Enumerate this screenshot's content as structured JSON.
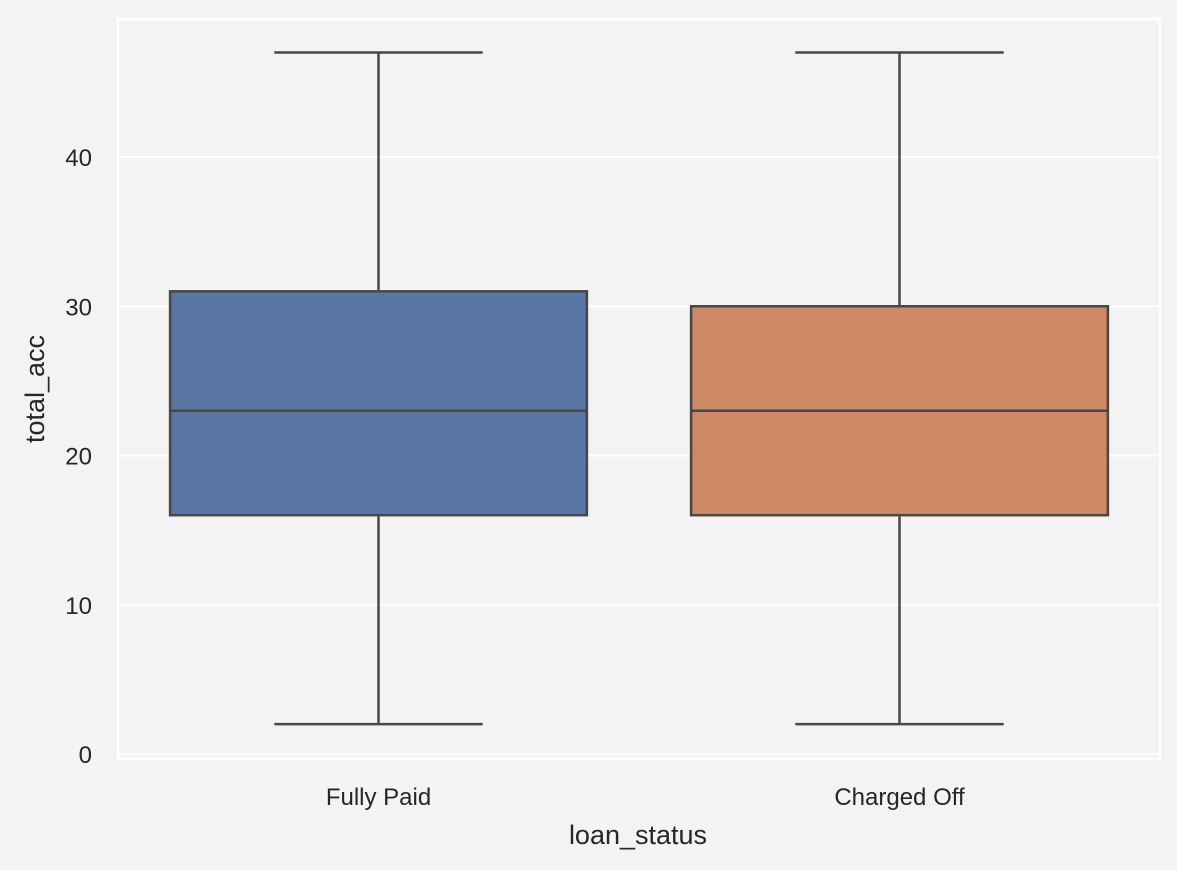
{
  "chart_data": {
    "type": "box",
    "title": "",
    "xlabel": "loan_status",
    "ylabel": "total_acc",
    "ylim": [
      0,
      49
    ],
    "yticks": [
      0,
      10,
      20,
      30,
      40
    ],
    "grid": true,
    "categories": [
      "Fully Paid",
      "Charged Off"
    ],
    "boxes": [
      {
        "category": "Fully Paid",
        "whisker_low": 2,
        "q1": 16,
        "median": 23,
        "q3": 31,
        "whisker_high": 47,
        "color": "#5875a4"
      },
      {
        "category": "Charged Off",
        "whisker_low": 2,
        "q1": 16,
        "median": 23,
        "q3": 30,
        "whisker_high": 47,
        "color": "#cc8963"
      }
    ],
    "colors": {
      "background": "#f3f3f3",
      "grid": "#ffffff",
      "line": "#474747",
      "text": "#262626"
    }
  }
}
